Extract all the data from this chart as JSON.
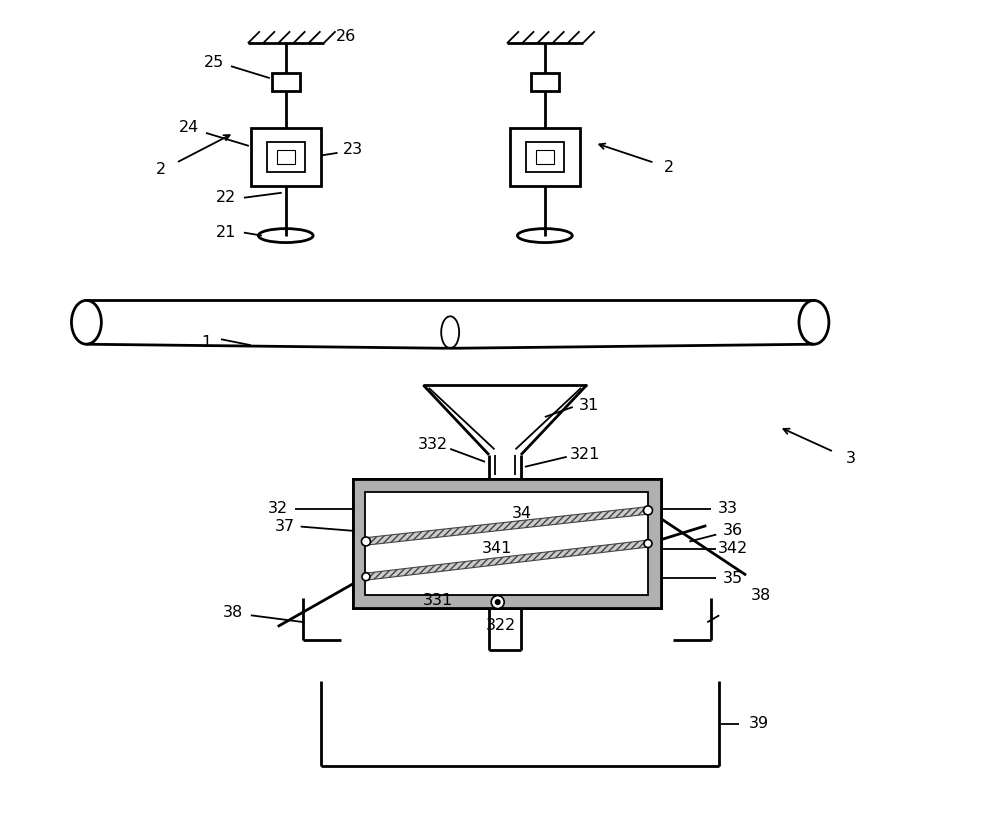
{
  "bg_color": "#ffffff",
  "line_color": "#000000",
  "fig_width": 10.0,
  "fig_height": 8.17,
  "dpi": 100
}
